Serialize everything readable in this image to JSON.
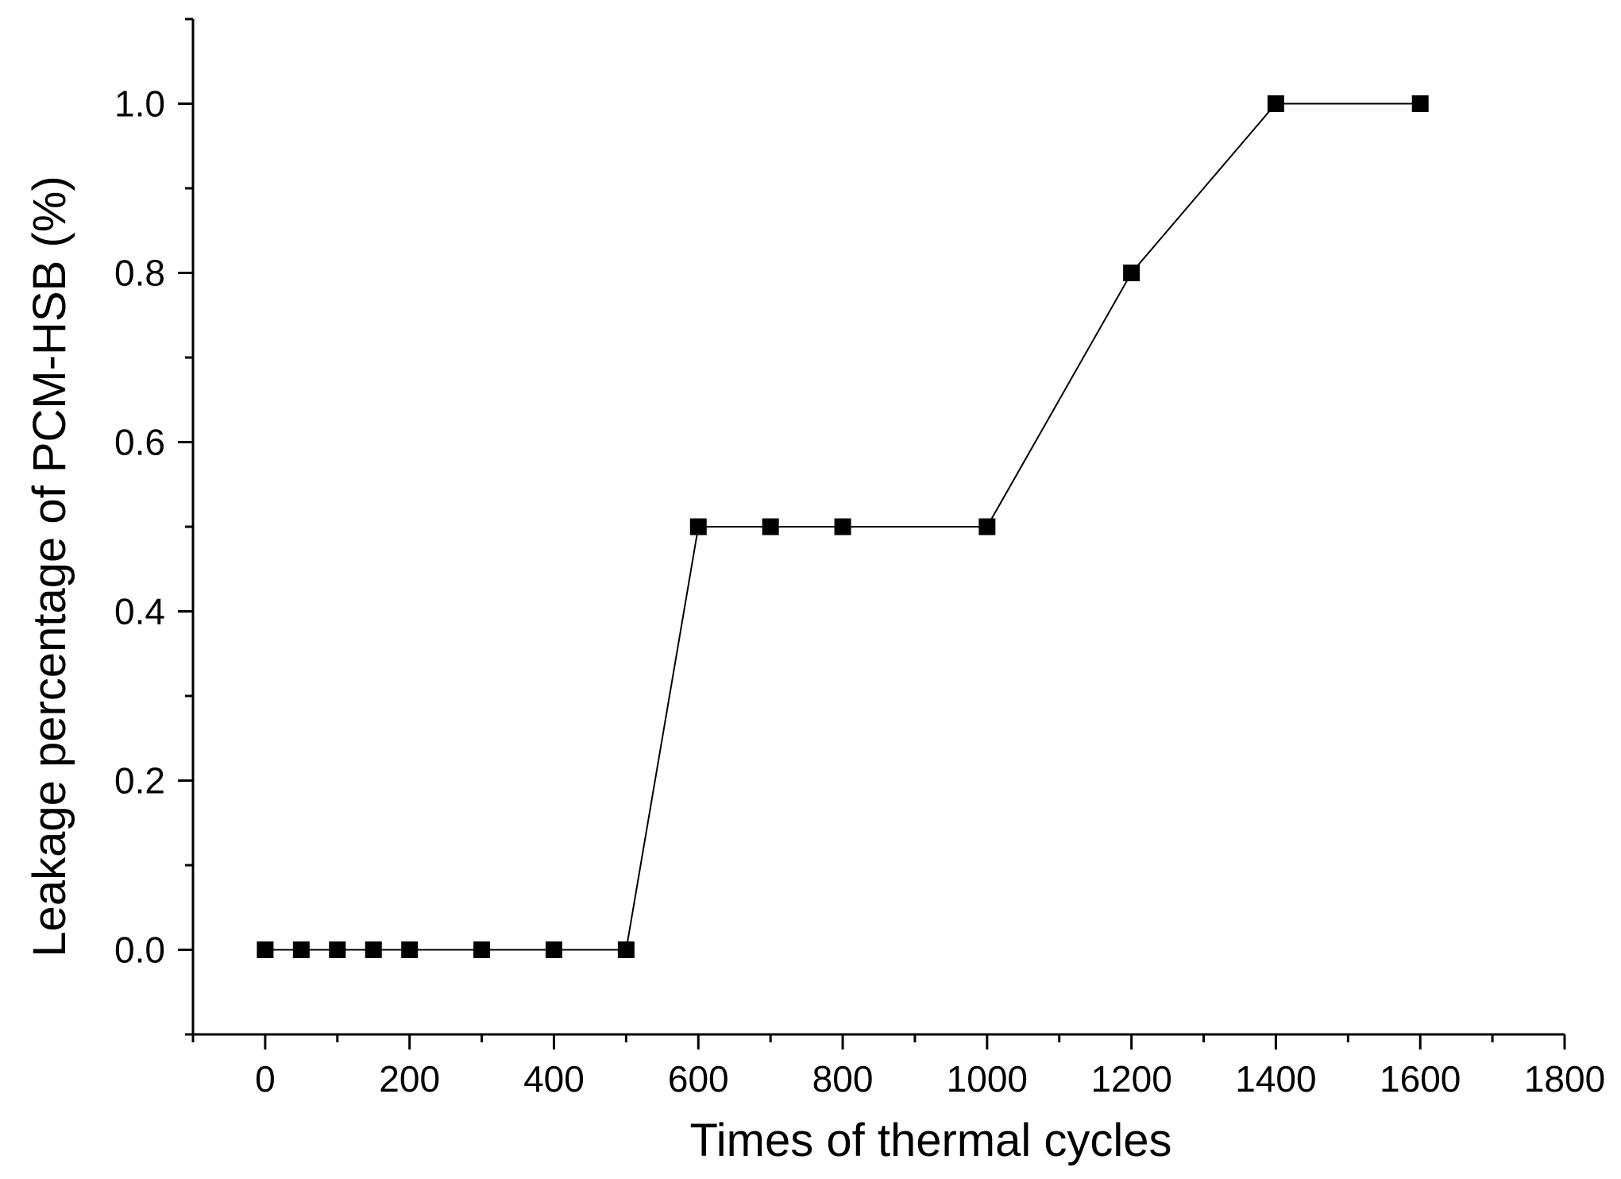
{
  "chart_data": {
    "type": "line",
    "title": "",
    "xlabel": "Times of thermal cycles",
    "ylabel": "Leakage percentage of PCM-HSB (%)",
    "xlim": [
      -100,
      1800
    ],
    "ylim": [
      -0.1,
      1.1
    ],
    "xticks": [
      0,
      200,
      400,
      600,
      800,
      1000,
      1200,
      1400,
      1600,
      1800
    ],
    "xtick_labels": [
      "0",
      "200",
      "400",
      "600",
      "800",
      "1000",
      "1200",
      "1400",
      "1600",
      "1800"
    ],
    "yticks": [
      0.0,
      0.2,
      0.4,
      0.6,
      0.8,
      1.0
    ],
    "ytick_labels": [
      "0.0",
      "0.2",
      "0.4",
      "0.6",
      "0.8",
      "1.0"
    ],
    "x_minor_step": 100,
    "y_minor_step": 0.1,
    "grid": false,
    "legend": "none",
    "marker": "square",
    "colors": {
      "line": "#000000",
      "marker": "#000000",
      "axis": "#000000"
    },
    "series": [
      {
        "x": [
          0,
          50,
          100,
          150,
          200,
          300,
          400,
          500,
          600,
          700,
          800,
          1000,
          1200,
          1400,
          1600
        ],
        "y": [
          0.0,
          0.0,
          0.0,
          0.0,
          0.0,
          0.0,
          0.0,
          0.0,
          0.5,
          0.5,
          0.5,
          0.5,
          0.8,
          1.0,
          1.0
        ]
      }
    ]
  }
}
